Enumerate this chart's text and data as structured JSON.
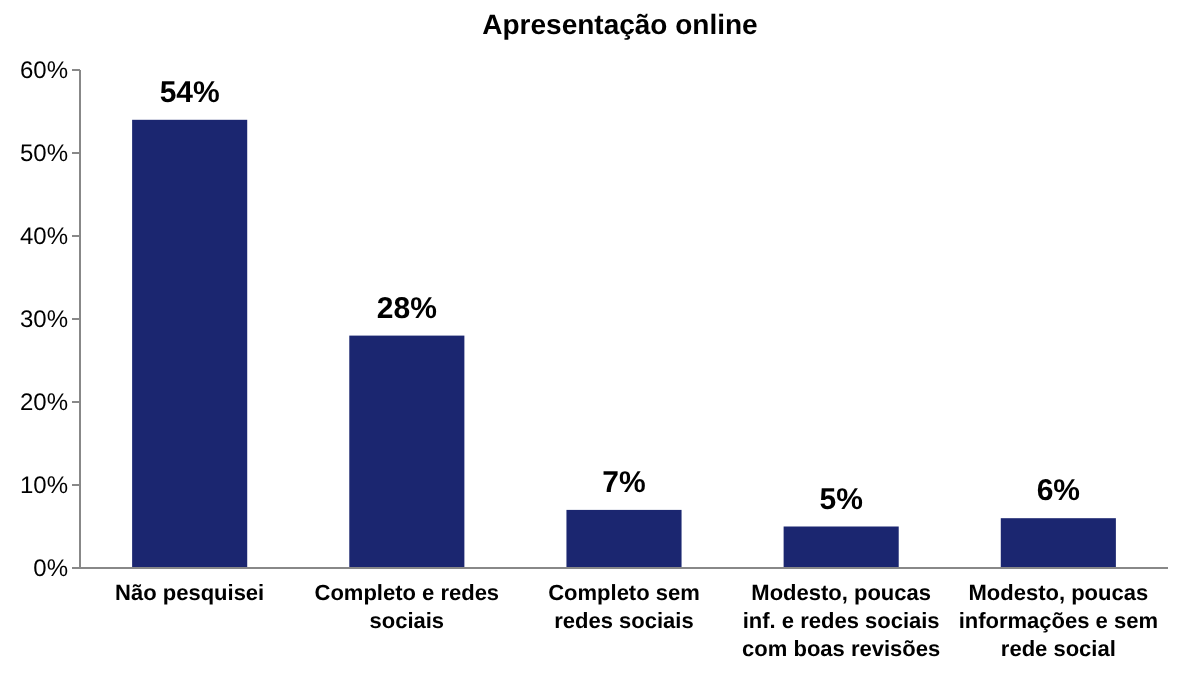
{
  "chart_data": {
    "type": "bar",
    "title": "Apresentação online",
    "categories": [
      "Não pesquisei",
      "Completo e redes\nsociais",
      "Completo  sem\nredes sociais",
      "Modesto, poucas\ninf. e  redes sociais\ncom boas revisões",
      "Modesto, poucas\ninformações e sem\nrede social"
    ],
    "values": [
      54,
      28,
      7,
      5,
      6
    ],
    "value_labels": [
      "54%",
      "28%",
      "7%",
      "5%",
      "6%"
    ],
    "color": "#1b2670",
    "ylim": [
      0,
      60
    ],
    "yticks": [
      {
        "value": 0,
        "label": "0%"
      },
      {
        "value": 10,
        "label": "10%"
      },
      {
        "value": 20,
        "label": "20%"
      },
      {
        "value": 30,
        "label": "30%"
      },
      {
        "value": 40,
        "label": "40%"
      },
      {
        "value": 50,
        "label": "50%"
      },
      {
        "value": 60,
        "label": "60%"
      }
    ],
    "grid": false
  }
}
